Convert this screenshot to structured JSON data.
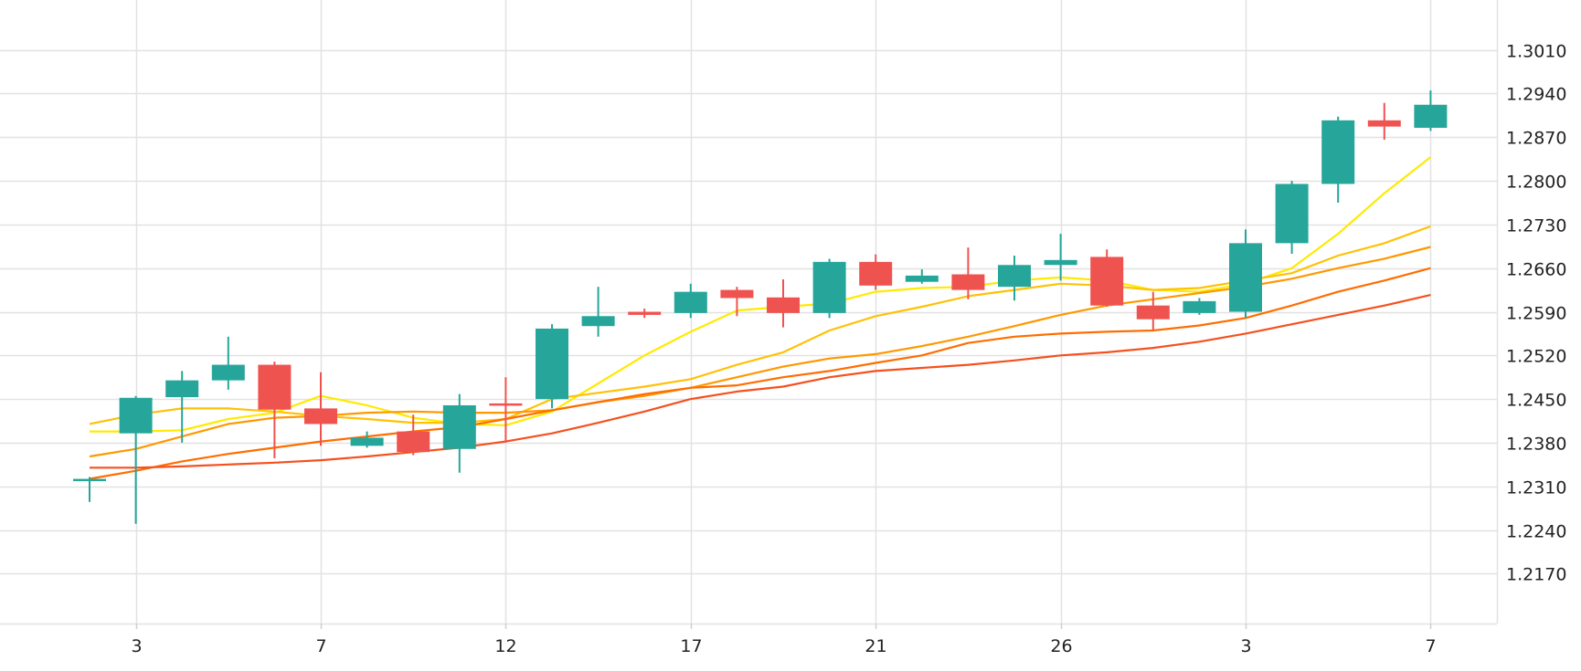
{
  "chart_data": {
    "type": "candlestick",
    "grid": true,
    "ylim": [
      1.209,
      1.309
    ],
    "y_ticks": [
      "1.3010",
      "1.2940",
      "1.2870",
      "1.2800",
      "1.2730",
      "1.2660",
      "1.2590",
      "1.2520",
      "1.2450",
      "1.2380",
      "1.2310",
      "1.2240",
      "1.2170"
    ],
    "x_ticks": [
      {
        "label": "3",
        "index": 1
      },
      {
        "label": "7",
        "index": 5
      },
      {
        "label": "12",
        "index": 9
      },
      {
        "label": "17",
        "index": 13
      },
      {
        "label": "21",
        "index": 17
      },
      {
        "label": "26",
        "index": 21
      },
      {
        "label": "3",
        "index": 25
      },
      {
        "label": "7",
        "index": 29
      }
    ],
    "colors": {
      "up": "#26a69a",
      "down": "#ef5350",
      "grid": "#e2e2e2",
      "ma": [
        "#ffea00",
        "#ffc107",
        "#ff9800",
        "#ff6d00",
        "#f4511e"
      ]
    },
    "candles": [
      {
        "o": 1.232,
        "h": 1.2325,
        "l": 1.2285,
        "c": 1.2322
      },
      {
        "o": 1.2395,
        "h": 1.2455,
        "l": 1.225,
        "c": 1.2452
      },
      {
        "o": 1.2453,
        "h": 1.2495,
        "l": 1.238,
        "c": 1.248
      },
      {
        "o": 1.248,
        "h": 1.255,
        "l": 1.2465,
        "c": 1.2505
      },
      {
        "o": 1.2505,
        "h": 1.251,
        "l": 1.2355,
        "c": 1.2433
      },
      {
        "o": 1.2435,
        "h": 1.2493,
        "l": 1.2375,
        "c": 1.241
      },
      {
        "o": 1.2375,
        "h": 1.2398,
        "l": 1.2372,
        "c": 1.2388
      },
      {
        "o": 1.2398,
        "h": 1.2425,
        "l": 1.236,
        "c": 1.2365
      },
      {
        "o": 1.237,
        "h": 1.2458,
        "l": 1.2332,
        "c": 1.244
      },
      {
        "o": 1.2443,
        "h": 1.2485,
        "l": 1.238,
        "c": 1.2442
      },
      {
        "o": 1.245,
        "h": 1.257,
        "l": 1.2435,
        "c": 1.2563
      },
      {
        "o": 1.2567,
        "h": 1.263,
        "l": 1.255,
        "c": 1.2583
      },
      {
        "o": 1.259,
        "h": 1.2595,
        "l": 1.258,
        "c": 1.2585
      },
      {
        "o": 1.2588,
        "h": 1.2635,
        "l": 1.258,
        "c": 1.2622
      },
      {
        "o": 1.2625,
        "h": 1.263,
        "l": 1.2583,
        "c": 1.2612
      },
      {
        "o": 1.2613,
        "h": 1.2642,
        "l": 1.2565,
        "c": 1.2588
      },
      {
        "o": 1.2588,
        "h": 1.2675,
        "l": 1.258,
        "c": 1.267
      },
      {
        "o": 1.267,
        "h": 1.2682,
        "l": 1.2625,
        "c": 1.2632
      },
      {
        "o": 1.2638,
        "h": 1.2658,
        "l": 1.2635,
        "c": 1.2648
      },
      {
        "o": 1.265,
        "h": 1.2693,
        "l": 1.261,
        "c": 1.2625
      },
      {
        "o": 1.263,
        "h": 1.268,
        "l": 1.2608,
        "c": 1.2665
      },
      {
        "o": 1.2665,
        "h": 1.2715,
        "l": 1.264,
        "c": 1.2673
      },
      {
        "o": 1.2678,
        "h": 1.269,
        "l": 1.2598,
        "c": 1.26
      },
      {
        "o": 1.26,
        "h": 1.2622,
        "l": 1.256,
        "c": 1.2578
      },
      {
        "o": 1.2588,
        "h": 1.2612,
        "l": 1.2585,
        "c": 1.2607
      },
      {
        "o": 1.259,
        "h": 1.2722,
        "l": 1.258,
        "c": 1.27
      },
      {
        "o": 1.27,
        "h": 1.28,
        "l": 1.2683,
        "c": 1.2795
      },
      {
        "o": 1.2795,
        "h": 1.2903,
        "l": 1.2765,
        "c": 1.2897
      },
      {
        "o": 1.2897,
        "h": 1.2925,
        "l": 1.2866,
        "c": 1.2887
      },
      {
        "o": 1.2885,
        "h": 1.2945,
        "l": 1.288,
        "c": 1.2922
      }
    ],
    "moving_averages": [
      {
        "values": [
          1.2398,
          1.2398,
          1.24,
          1.2418,
          1.2428,
          1.2455,
          1.244,
          1.242,
          1.241,
          1.2408,
          1.243,
          1.2475,
          1.252,
          1.2558,
          1.2592,
          1.2598,
          1.2603,
          1.2622,
          1.2628,
          1.263,
          1.264,
          1.2645,
          1.264,
          1.2625,
          1.2622,
          1.2635,
          1.266,
          1.2715,
          1.278,
          1.2838
        ]
      },
      {
        "values": [
          1.241,
          1.2425,
          1.2435,
          1.2435,
          1.243,
          1.2423,
          1.2418,
          1.2412,
          1.2412,
          1.2418,
          1.245,
          1.246,
          1.247,
          1.2482,
          1.2505,
          1.2525,
          1.256,
          1.2583,
          1.2598,
          1.2615,
          1.2625,
          1.2635,
          1.2632,
          1.2625,
          1.2628,
          1.264,
          1.2652,
          1.268,
          1.27,
          1.2727
        ]
      },
      {
        "values": [
          1.2358,
          1.237,
          1.239,
          1.241,
          1.242,
          1.2423,
          1.2428,
          1.243,
          1.2428,
          1.2428,
          1.2432,
          1.2445,
          1.2455,
          1.2468,
          1.2485,
          1.2502,
          1.2515,
          1.2522,
          1.2535,
          1.255,
          1.2567,
          1.2585,
          1.26,
          1.261,
          1.262,
          1.263,
          1.2643,
          1.266,
          1.2675,
          1.2694
        ]
      },
      {
        "values": [
          1.2322,
          1.2335,
          1.235,
          1.2362,
          1.2372,
          1.2382,
          1.239,
          1.2398,
          1.2405,
          1.2418,
          1.2432,
          1.2445,
          1.2458,
          1.2468,
          1.2472,
          1.2485,
          1.2495,
          1.2508,
          1.252,
          1.254,
          1.255,
          1.2555,
          1.2558,
          1.256,
          1.2568,
          1.258,
          1.26,
          1.2622,
          1.264,
          1.266
        ]
      },
      {
        "values": [
          1.234,
          1.234,
          1.2342,
          1.2345,
          1.2348,
          1.2352,
          1.2358,
          1.2365,
          1.2372,
          1.2382,
          1.2395,
          1.2412,
          1.243,
          1.245,
          1.2462,
          1.247,
          1.2485,
          1.2495,
          1.25,
          1.2505,
          1.2512,
          1.252,
          1.2525,
          1.2532,
          1.2542,
          1.2555,
          1.257,
          1.2585,
          1.26,
          1.2617
        ]
      }
    ]
  }
}
